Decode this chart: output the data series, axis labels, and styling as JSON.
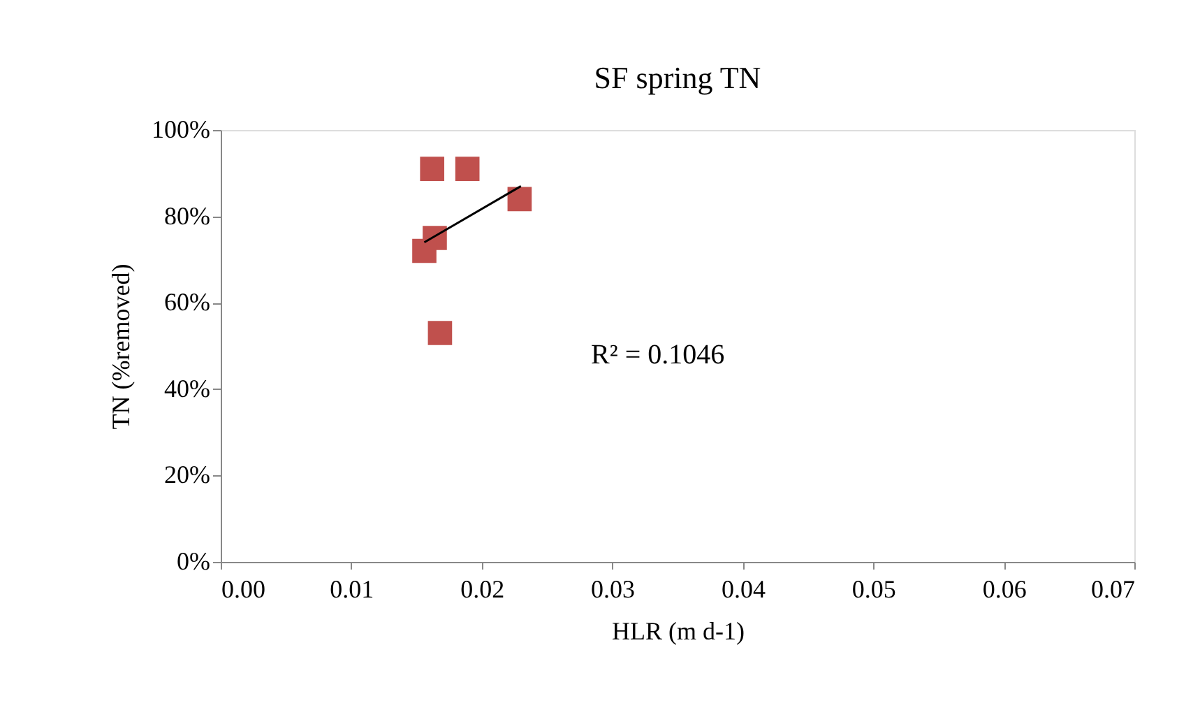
{
  "chart_data": {
    "type": "scatter",
    "title": "SF spring TN",
    "xlabel": "HLR (m d-1)",
    "ylabel": "TN (%removed)",
    "xlim": [
      0,
      0.07
    ],
    "xticks": [
      {
        "value": 0,
        "label": "0.00"
      },
      {
        "value": 0.01,
        "label": "0.01"
      },
      {
        "value": 0.02,
        "label": "0.02"
      },
      {
        "value": 0.03,
        "label": "0.03"
      },
      {
        "value": 0.04,
        "label": "0.04"
      },
      {
        "value": 0.05,
        "label": "0.05"
      },
      {
        "value": 0.06,
        "label": "0.06"
      },
      {
        "value": 0.07,
        "label": "0.07"
      }
    ],
    "ylim": [
      0,
      1
    ],
    "yticks": [
      {
        "value": 0,
        "label": "0%"
      },
      {
        "value": 0.2,
        "label": "20%"
      },
      {
        "value": 0.4,
        "label": "40%"
      },
      {
        "value": 0.6,
        "label": "60%"
      },
      {
        "value": 0.8,
        "label": "80%"
      },
      {
        "value": 1,
        "label": "100%"
      }
    ],
    "series": [
      {
        "color": "#c0504d",
        "marker": "square",
        "x": [
          0.0162,
          0.0189,
          0.0229,
          0.0164,
          0.0156,
          0.0168
        ],
        "values": [
          0.91,
          0.91,
          0.84,
          0.75,
          0.72,
          0.53
        ]
      },
      {
        "type": "line",
        "color": "#000000",
        "x": [
          0.0156,
          0.023
        ],
        "values": [
          0.74,
          0.87
        ]
      }
    ],
    "annotations": [
      "R² = 0.1046"
    ],
    "grid": false
  }
}
